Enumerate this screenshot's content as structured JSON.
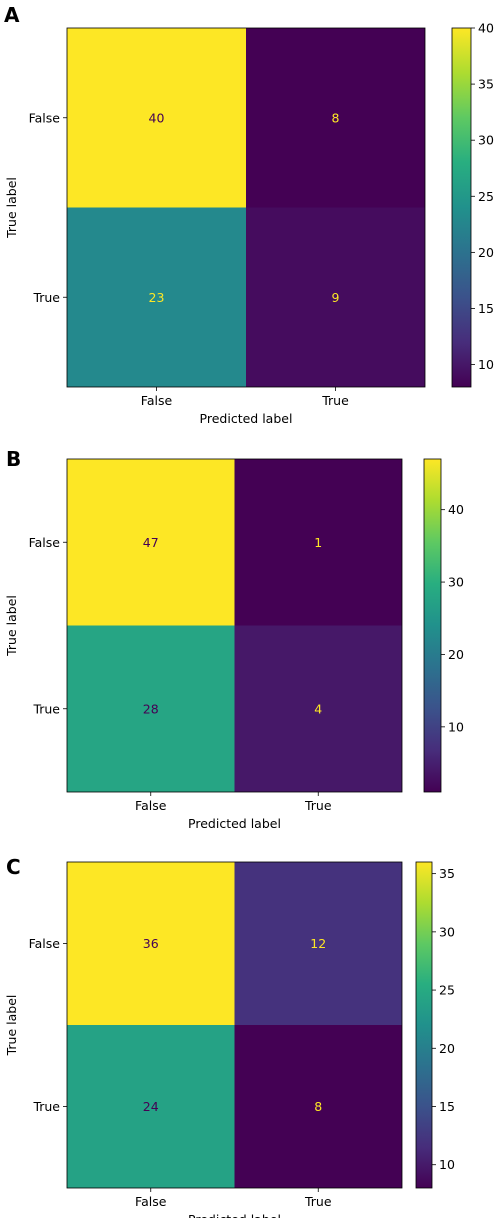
{
  "chart_data": [
    {
      "type": "heatmap",
      "panel_label": "A",
      "xlabel": "Predicted label",
      "ylabel": "True label",
      "x_categories": [
        "False",
        "True"
      ],
      "y_categories": [
        "False",
        "True"
      ],
      "values": [
        [
          40,
          8
        ],
        [
          23,
          9
        ]
      ],
      "colormap": "viridis",
      "colorbar_ticks": [
        40,
        35,
        30,
        25,
        20,
        15,
        10
      ],
      "colorbar_range": [
        8,
        40
      ]
    },
    {
      "type": "heatmap",
      "panel_label": "B",
      "xlabel": "Predicted label",
      "ylabel": "True label",
      "x_categories": [
        "False",
        "True"
      ],
      "y_categories": [
        "False",
        "True"
      ],
      "values": [
        [
          47,
          1
        ],
        [
          28,
          4
        ]
      ],
      "colormap": "viridis",
      "colorbar_ticks": [
        40,
        30,
        20,
        10
      ],
      "colorbar_range": [
        1,
        47
      ]
    },
    {
      "type": "heatmap",
      "panel_label": "C",
      "xlabel": "Predicted label",
      "ylabel": "True label",
      "x_categories": [
        "False",
        "True"
      ],
      "y_categories": [
        "False",
        "True"
      ],
      "values": [
        [
          36,
          12
        ],
        [
          24,
          8
        ]
      ],
      "colormap": "viridis",
      "colorbar_ticks": [
        35,
        30,
        25,
        20,
        15,
        10
      ],
      "colorbar_range": [
        8,
        36
      ]
    }
  ]
}
